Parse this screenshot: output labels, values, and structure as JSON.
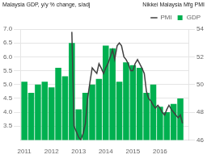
{
  "chart_data": {
    "type": "bar",
    "ylabel": "Malaysia GDP, y/y % change, s/adj",
    "y2label": "Nikkei Malaysia Mfg PMI",
    "series": [
      {
        "name": "GDP",
        "type": "bar",
        "color": "#00b050",
        "x": [
          2011.0,
          2011.25,
          2011.5,
          2011.75,
          2012.0,
          2012.25,
          2012.5,
          2012.75,
          2013.0,
          2013.25,
          2013.5,
          2013.75,
          2014.0,
          2014.25,
          2014.5,
          2014.75,
          2015.0,
          2015.25,
          2015.5,
          2015.75,
          2016.0,
          2016.25,
          2016.5,
          2016.75
        ],
        "values": [
          5.1,
          4.7,
          5.0,
          5.1,
          4.9,
          5.6,
          5.3,
          6.5,
          4.1,
          4.7,
          5.0,
          5.2,
          6.4,
          6.3,
          5.1,
          5.8,
          5.7,
          5.6,
          4.7,
          5.0,
          4.2,
          4.0,
          4.3,
          4.5
        ]
      },
      {
        "name": "PMI",
        "type": "line",
        "axis": "y2",
        "color": "#404040",
        "x": [
          2012.75,
          2012.83,
          2013.0,
          2013.08,
          2013.17,
          2013.25,
          2013.33,
          2013.42,
          2013.5,
          2013.58,
          2013.67,
          2013.75,
          2013.83,
          2013.92,
          2014.0,
          2014.08,
          2014.17,
          2014.25,
          2014.33,
          2014.42,
          2014.5,
          2014.58,
          2014.67,
          2014.75,
          2014.83,
          2014.92,
          2015.0,
          2015.08,
          2015.17,
          2015.25,
          2015.33,
          2015.42,
          2015.5,
          2015.58,
          2015.67,
          2015.75,
          2015.83,
          2015.92,
          2016.0,
          2016.08,
          2016.17,
          2016.25,
          2016.33,
          2016.42,
          2016.5,
          2016.58,
          2016.67,
          2016.75,
          2016.83
        ],
        "values": [
          53.8,
          47.0,
          46.2,
          46.0,
          46.5,
          47.2,
          49.0,
          50.2,
          51.2,
          51.0,
          50.8,
          51.5,
          51.2,
          50.8,
          51.2,
          51.5,
          52.0,
          52.5,
          51.8,
          52.8,
          53.0,
          52.8,
          52.0,
          51.8,
          51.5,
          51.0,
          51.0,
          51.5,
          51.8,
          51.5,
          51.2,
          50.8,
          49.5,
          49.0,
          48.8,
          48.5,
          48.3,
          48.5,
          48.3,
          48.0,
          47.8,
          48.2,
          48.5,
          48.2,
          48.0,
          47.8,
          47.6,
          47.8,
          47.2
        ]
      }
    ],
    "xlim": [
      2010.85,
      2017.05
    ],
    "xticks": [
      2011,
      2012,
      2013,
      2014,
      2015,
      2016
    ],
    "ylim": [
      3.0,
      7.0
    ],
    "yticks": [
      3.5,
      {
        "value": 4.0,
        "label": "4.0"
      },
      4.5,
      {
        "value": 5.0,
        "label": "5.0"
      },
      5.5,
      {
        "value": 6.0,
        "label": "6.0"
      },
      6.5,
      {
        "value": 7.0,
        "label": "7.0"
      }
    ],
    "y2lim": [
      46,
      54
    ],
    "y2ticks": [
      46,
      48,
      50,
      52,
      54
    ],
    "grid": true,
    "legend": "upper right"
  }
}
